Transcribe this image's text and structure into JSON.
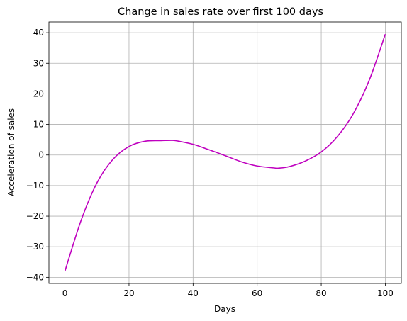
{
  "chart_data": {
    "type": "line",
    "title": "Change in sales rate over first 100 days",
    "xlabel": "Days",
    "ylabel": "Acceleration of sales",
    "xlim": [
      -5,
      105
    ],
    "ylim": [
      -42,
      43.5
    ],
    "xticks": [
      0,
      20,
      40,
      60,
      80,
      100
    ],
    "yticks": [
      -40,
      -30,
      -20,
      -10,
      0,
      10,
      20,
      30,
      40
    ],
    "xtick_labels": [
      "0",
      "20",
      "40",
      "60",
      "80",
      "100"
    ],
    "ytick_labels": [
      "−40",
      "−30",
      "−20",
      "−10",
      "0",
      "10",
      "20",
      "30",
      "40"
    ],
    "grid": true,
    "series": [
      {
        "color": "#bf00bf",
        "x": [
          0,
          5,
          10,
          15,
          20,
          25,
          30,
          33.3,
          35,
          40,
          45,
          50,
          55,
          60,
          65,
          66.7,
          70,
          75,
          80,
          85,
          90,
          95,
          100
        ],
        "values": [
          -38,
          -21.5,
          -9.1,
          -1.4,
          2.8,
          4.5,
          4.7,
          4.8,
          4.6,
          3.5,
          1.7,
          -0.2,
          -2.2,
          -3.6,
          -4.2,
          -4.3,
          -3.8,
          -2.0,
          1.0,
          6.0,
          13.5,
          24.5,
          39.5
        ]
      }
    ]
  }
}
